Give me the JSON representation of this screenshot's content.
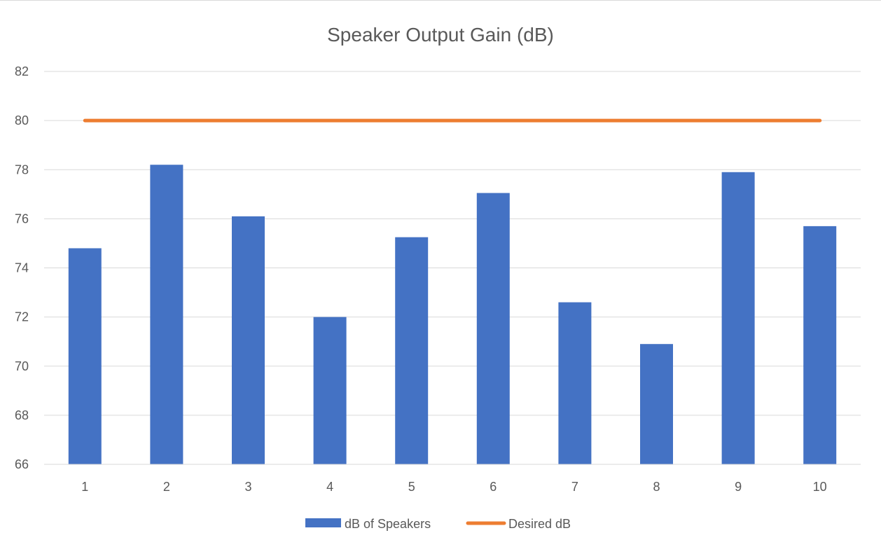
{
  "chart_data": {
    "type": "bar",
    "title": "Speaker Output Gain (dB)",
    "xlabel": "",
    "ylabel": "",
    "categories": [
      "1",
      "2",
      "3",
      "4",
      "5",
      "6",
      "7",
      "8",
      "9",
      "10"
    ],
    "series": [
      {
        "name": "dB of Speakers",
        "type": "bar",
        "color": "#4472c4",
        "values": [
          74.8,
          78.2,
          76.1,
          72.0,
          75.25,
          77.05,
          72.6,
          70.9,
          77.9,
          75.7
        ]
      },
      {
        "name": "Desired dB",
        "type": "line",
        "color": "#ed7d31",
        "values": [
          80,
          80,
          80,
          80,
          80,
          80,
          80,
          80,
          80,
          80
        ]
      }
    ],
    "ylim": [
      66,
      82
    ],
    "yticks": [
      66,
      68,
      70,
      72,
      74,
      76,
      78,
      80,
      82
    ],
    "grid": true,
    "gridColor": "#d9d9d9",
    "legend": "bottom"
  }
}
